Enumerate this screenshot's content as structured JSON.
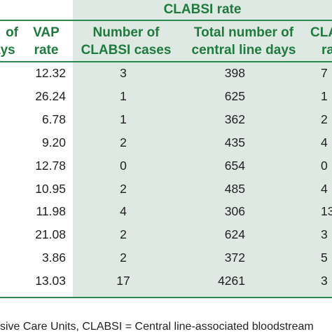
{
  "table": {
    "group_header": "CLABSI rate",
    "headers": {
      "col0_line1": "of",
      "col0_line2": "ays",
      "col1_line1": "VAP",
      "col1_line2": "rate",
      "col2_line1": "Number of",
      "col2_line2": "CLABSI cases",
      "col3_line1": "Total number of",
      "col3_line2": "central line days",
      "col4_line1": "CLA",
      "col4_line2": "ra"
    },
    "rows": [
      {
        "vap": "12.32",
        "cases": "3",
        "days": "398",
        "rate": "7"
      },
      {
        "vap": "26.24",
        "cases": "1",
        "days": "625",
        "rate": "1"
      },
      {
        "vap": "6.78",
        "cases": "1",
        "days": "362",
        "rate": "2"
      },
      {
        "vap": "9.20",
        "cases": "2",
        "days": "435",
        "rate": "4"
      },
      {
        "vap": "12.78",
        "cases": "0",
        "days": "654",
        "rate": "0"
      },
      {
        "vap": "10.95",
        "cases": "2",
        "days": "485",
        "rate": "4"
      },
      {
        "vap": "11.98",
        "cases": "4",
        "days": "306",
        "rate": "13"
      },
      {
        "vap": "21.08",
        "cases": "2",
        "days": "624",
        "rate": "3"
      },
      {
        "vap": "3.86",
        "cases": "2",
        "days": "372",
        "rate": "5"
      },
      {
        "vap": "13.03",
        "cases": "17",
        "days": "4261",
        "rate": "3"
      }
    ]
  },
  "footnote": "sive Care Units, CLABSI = Central line-associated bloodstream"
}
